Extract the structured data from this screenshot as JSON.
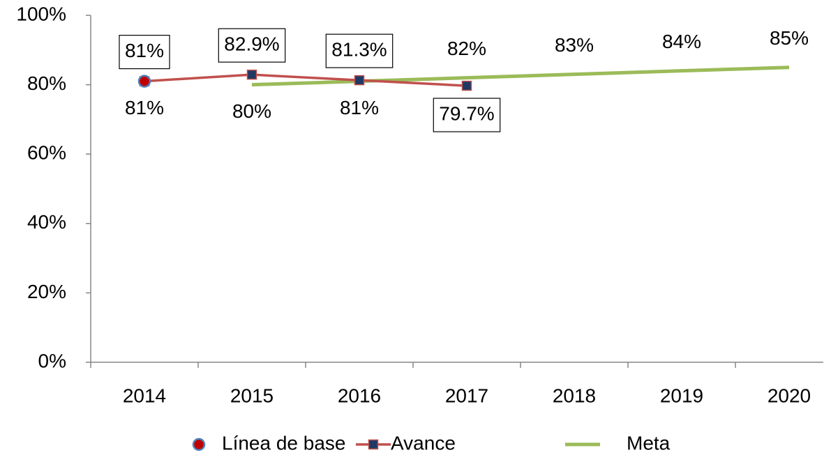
{
  "chart_data": {
    "type": "line",
    "categories": [
      "2014",
      "2015",
      "2016",
      "2017",
      "2018",
      "2019",
      "2020"
    ],
    "series": [
      {
        "name": "Línea de base",
        "color": "#c00000",
        "marker": "circle",
        "marker_edge": "#4f81bd",
        "values": [
          81,
          null,
          null,
          null,
          null,
          null,
          null
        ],
        "value_labels": [
          "81%",
          null,
          null,
          null,
          null,
          null,
          null
        ]
      },
      {
        "name": "Avance",
        "color": "#c0504d",
        "marker": "square",
        "marker_fill": "#1f3864",
        "values": [
          81,
          82.9,
          81.3,
          79.7,
          null,
          null,
          null
        ],
        "value_labels": [
          "81%",
          "82.9%",
          "81.3%",
          "79.7%",
          null,
          null,
          null
        ]
      },
      {
        "name": "Meta",
        "color": "#9bbb59",
        "values": [
          null,
          80,
          81,
          82,
          83,
          84,
          85
        ],
        "value_labels": [
          null,
          "80%",
          "81%",
          "82%",
          "83%",
          "84%",
          "85%"
        ]
      }
    ],
    "ylim": [
      0,
      100
    ],
    "yticks": [
      {
        "value": 0,
        "label": "0%"
      },
      {
        "value": 20,
        "label": "20%"
      },
      {
        "value": 40,
        "label": "40%"
      },
      {
        "value": 60,
        "label": "60%"
      },
      {
        "value": 80,
        "label": "80%"
      },
      {
        "value": 100,
        "label": "100%"
      }
    ],
    "legend": "bottom"
  }
}
